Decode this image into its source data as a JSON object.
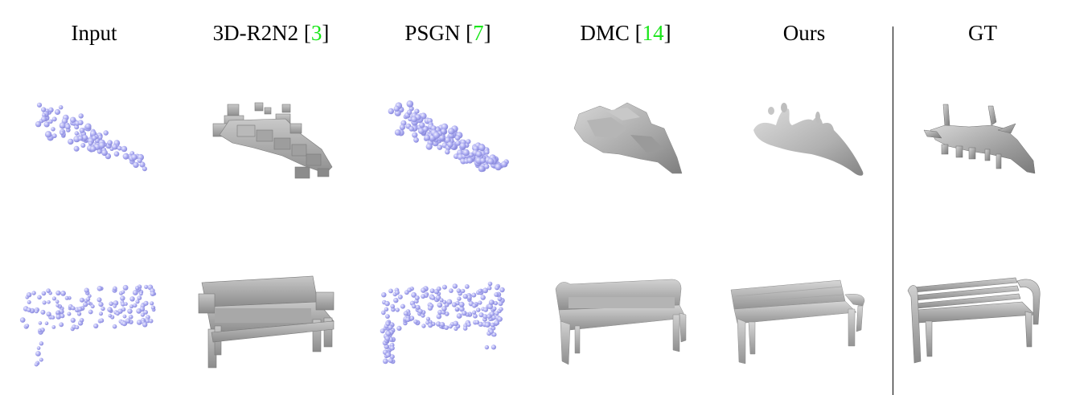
{
  "columns": [
    {
      "label": "Input",
      "ref": ""
    },
    {
      "label": "3D-R2N2 [",
      "ref": "3",
      "close": "]"
    },
    {
      "label": "PSGN [",
      "ref": "7",
      "close": "]"
    },
    {
      "label": "DMC [",
      "ref": "14",
      "close": "]"
    },
    {
      "label": "Ours",
      "ref": ""
    },
    {
      "label": "GT",
      "ref": ""
    }
  ],
  "rows": [
    "airplane",
    "bench"
  ],
  "colors": {
    "point_cloud": "#a7a7f0",
    "mesh": "#a9a9a9",
    "reference_link": "#19e619",
    "divider": "#000000"
  }
}
